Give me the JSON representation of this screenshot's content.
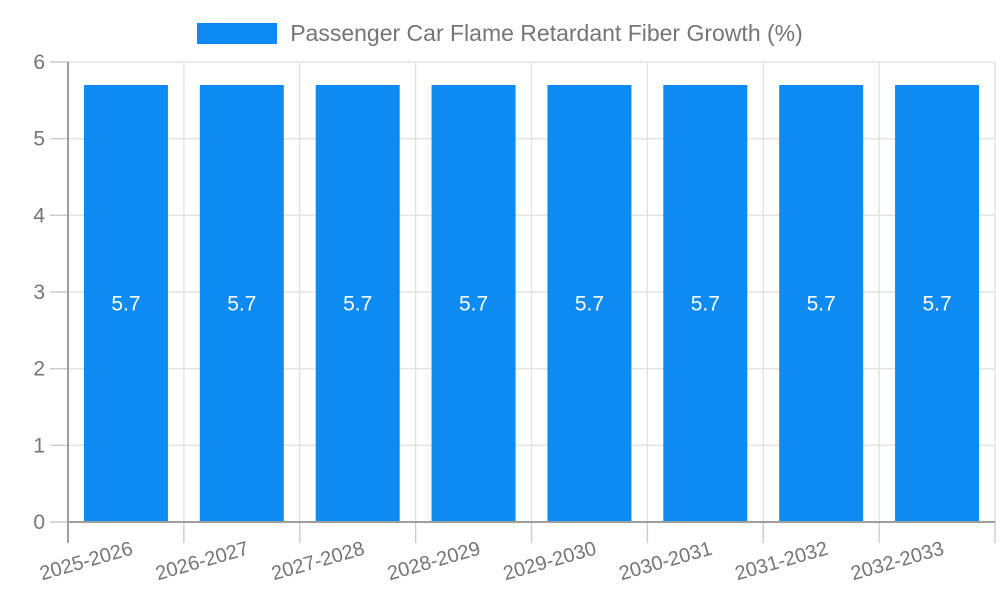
{
  "legend": {
    "label": "Passenger Car Flame Retardant Fiber Growth (%)"
  },
  "chart_data": {
    "type": "bar",
    "title": "Passenger Car Flame Retardant Fiber Growth (%)",
    "categories": [
      "2025-2026",
      "2026-2027",
      "2027-2028",
      "2028-2029",
      "2029-2030",
      "2030-2031",
      "2031-2032",
      "2032-2033"
    ],
    "values": [
      5.7,
      5.7,
      5.7,
      5.7,
      5.7,
      5.7,
      5.7,
      5.7
    ],
    "value_labels": [
      "5.7",
      "5.7",
      "5.7",
      "5.7",
      "5.7",
      "5.7",
      "5.7",
      "5.7"
    ],
    "xlabel": "",
    "ylabel": "",
    "ylim": [
      0,
      6
    ],
    "yticks": [
      0,
      1,
      2,
      3,
      4,
      5,
      6
    ],
    "grid": true,
    "legend_position": "top-center",
    "colors": {
      "bar": "#0d8bf2",
      "axis_label": "#757575",
      "legend_text": "#757575",
      "grid_line": "#e3e3e3",
      "tick_line": "#cccccc",
      "axis_line": "#9e9e9e",
      "value_label": "#ffffff",
      "background": "#ffffff"
    }
  }
}
